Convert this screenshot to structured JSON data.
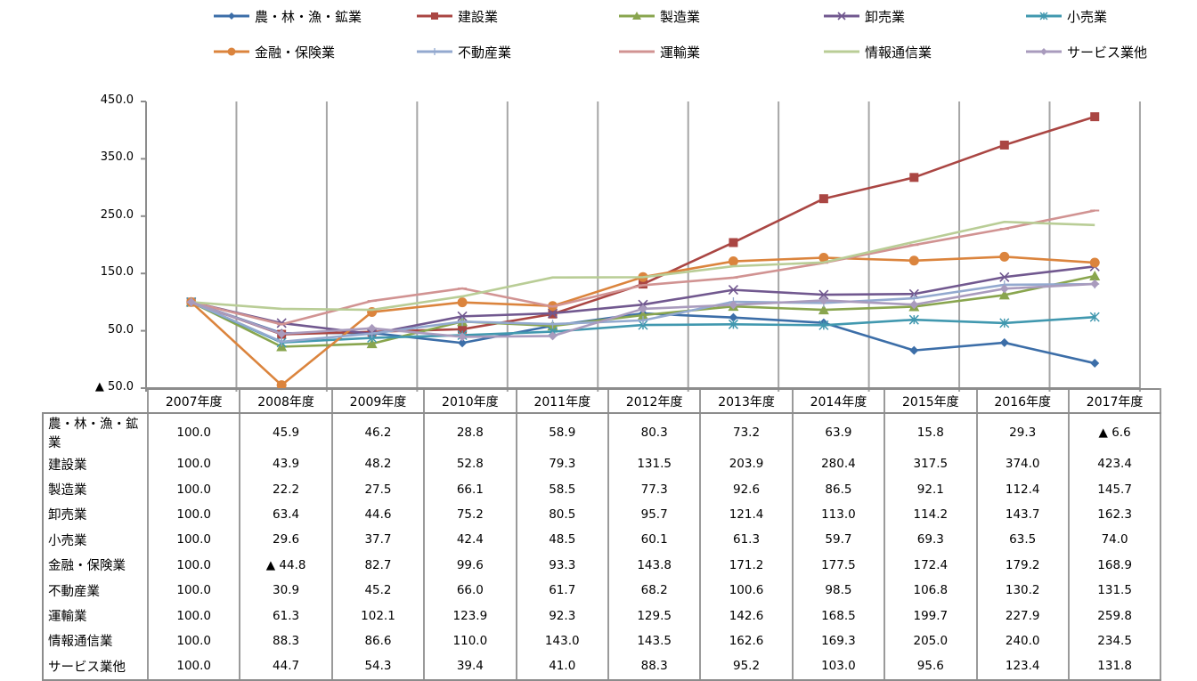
{
  "chart_data": {
    "type": "line",
    "title": "",
    "xlabel": "",
    "ylabel": "",
    "ylim": [
      -50,
      450
    ],
    "yticks": [
      450,
      350,
      250,
      150,
      50,
      -50
    ],
    "ytick_labels": [
      "450.0",
      "350.0",
      "250.0",
      "150.0",
      "50.0",
      "▲ 50.0"
    ],
    "grid": "vertical lines between categories",
    "legend_position": "top",
    "categories": [
      "2007年度",
      "2008年度",
      "2009年度",
      "2010年度",
      "2011年度",
      "2012年度",
      "2013年度",
      "2014年度",
      "2015年度",
      "2016年度",
      "2017年度"
    ],
    "series": [
      {
        "name": "農・林・漁・鉱業",
        "color": "#3C6EA8",
        "marker": "diamond",
        "values": [
          100.0,
          45.9,
          46.2,
          28.8,
          58.9,
          80.3,
          73.2,
          63.9,
          15.8,
          29.3,
          -6.6
        ],
        "labels": [
          "100.0",
          "45.9",
          "46.2",
          "28.8",
          "58.9",
          "80.3",
          "73.2",
          "63.9",
          "15.8",
          "29.3",
          "▲ 6.6"
        ]
      },
      {
        "name": "建設業",
        "color": "#AA4643",
        "marker": "square",
        "values": [
          100.0,
          43.9,
          48.2,
          52.8,
          79.3,
          131.5,
          203.9,
          280.4,
          317.5,
          374.0,
          423.4
        ],
        "labels": [
          "100.0",
          "43.9",
          "48.2",
          "52.8",
          "79.3",
          "131.5",
          "203.9",
          "280.4",
          "317.5",
          "374.0",
          "423.4"
        ]
      },
      {
        "name": "製造業",
        "color": "#89A54E",
        "marker": "triangle",
        "values": [
          100.0,
          22.2,
          27.5,
          66.1,
          58.5,
          77.3,
          92.6,
          86.5,
          92.1,
          112.4,
          145.7
        ],
        "labels": [
          "100.0",
          "22.2",
          "27.5",
          "66.1",
          "58.5",
          "77.3",
          "92.6",
          "86.5",
          "92.1",
          "112.4",
          "145.7"
        ]
      },
      {
        "name": "卸売業",
        "color": "#71588F",
        "marker": "x",
        "values": [
          100.0,
          63.4,
          44.6,
          75.2,
          80.5,
          95.7,
          121.4,
          113.0,
          114.2,
          143.7,
          162.3
        ],
        "labels": [
          "100.0",
          "63.4",
          "44.6",
          "75.2",
          "80.5",
          "95.7",
          "121.4",
          "113.0",
          "114.2",
          "143.7",
          "162.3"
        ]
      },
      {
        "name": "小売業",
        "color": "#4198AF",
        "marker": "asterisk",
        "values": [
          100.0,
          29.6,
          37.7,
          42.4,
          48.5,
          60.1,
          61.3,
          59.7,
          69.3,
          63.5,
          74.0
        ],
        "labels": [
          "100.0",
          "29.6",
          "37.7",
          "42.4",
          "48.5",
          "60.1",
          "61.3",
          "59.7",
          "69.3",
          "63.5",
          "74.0"
        ]
      },
      {
        "name": "金融・保険業",
        "color": "#DB843D",
        "marker": "circle",
        "values": [
          100.0,
          -44.8,
          82.7,
          99.6,
          93.3,
          143.8,
          171.2,
          177.5,
          172.4,
          179.2,
          168.9
        ],
        "labels": [
          "100.0",
          "▲ 44.8",
          "82.7",
          "99.6",
          "93.3",
          "143.8",
          "171.2",
          "177.5",
          "172.4",
          "179.2",
          "168.9"
        ]
      },
      {
        "name": "不動産業",
        "color": "#93A9CF",
        "marker": "plus",
        "values": [
          100.0,
          30.9,
          45.2,
          66.0,
          61.7,
          68.2,
          100.6,
          98.5,
          106.8,
          130.2,
          131.5
        ],
        "labels": [
          "100.0",
          "30.9",
          "45.2",
          "66.0",
          "61.7",
          "68.2",
          "100.6",
          "98.5",
          "106.8",
          "130.2",
          "131.5"
        ]
      },
      {
        "name": "運輸業",
        "color": "#D19392",
        "marker": "dash",
        "values": [
          100.0,
          61.3,
          102.1,
          123.9,
          92.3,
          129.5,
          142.6,
          168.5,
          199.7,
          227.9,
          259.8
        ],
        "labels": [
          "100.0",
          "61.3",
          "102.1",
          "123.9",
          "92.3",
          "129.5",
          "142.6",
          "168.5",
          "199.7",
          "227.9",
          "259.8"
        ]
      },
      {
        "name": "情報通信業",
        "color": "#B9CD96",
        "marker": "none",
        "values": [
          100.0,
          88.3,
          86.6,
          110.0,
          143.0,
          143.5,
          162.6,
          169.3,
          205.0,
          240.0,
          234.5
        ],
        "labels": [
          "100.0",
          "88.3",
          "86.6",
          "110.0",
          "143.0",
          "143.5",
          "162.6",
          "169.3",
          "205.0",
          "240.0",
          "234.5"
        ]
      },
      {
        "name": "サービス業他",
        "color": "#A99BBD",
        "marker": "diamond",
        "values": [
          100.0,
          44.7,
          54.3,
          39.4,
          41.0,
          88.3,
          95.2,
          103.0,
          95.6,
          123.4,
          131.8
        ],
        "labels": [
          "100.0",
          "44.7",
          "54.3",
          "39.4",
          "41.0",
          "88.3",
          "95.2",
          "103.0",
          "95.6",
          "123.4",
          "131.8"
        ]
      }
    ]
  }
}
